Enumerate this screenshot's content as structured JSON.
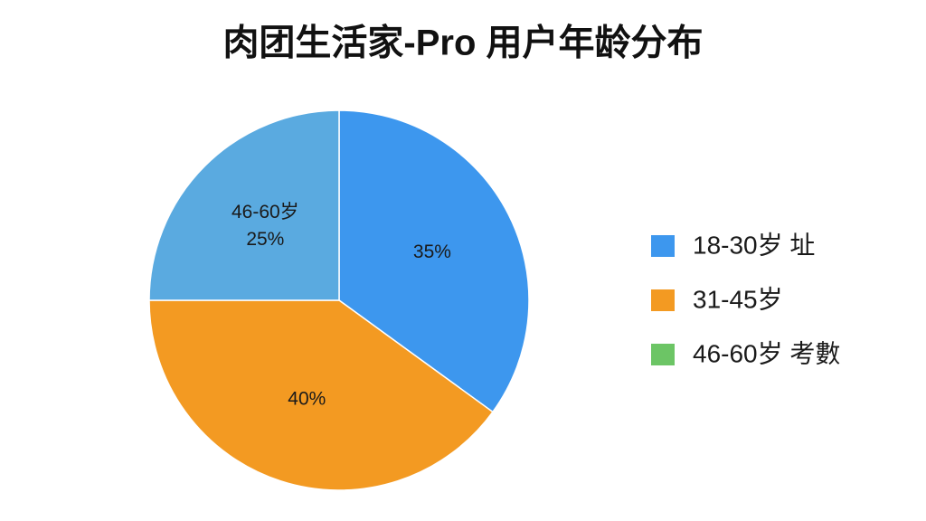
{
  "chart_data": {
    "type": "pie",
    "title": "肉团生活家-Pro 用户年龄分布",
    "categories": [
      "18-30岁 址",
      "31-45岁",
      "46-60岁 考數"
    ],
    "values": [
      35,
      40,
      25
    ],
    "value_labels": [
      "35%",
      "40%",
      "25%"
    ],
    "colors": [
      "#3d97ee",
      "#f39a22",
      "#5aaae0"
    ],
    "legend_colors": [
      "#3d97ee",
      "#f39a22",
      "#6cc565"
    ],
    "annotations": [
      {
        "text": "46-60岁"
      }
    ],
    "legend": "right"
  }
}
